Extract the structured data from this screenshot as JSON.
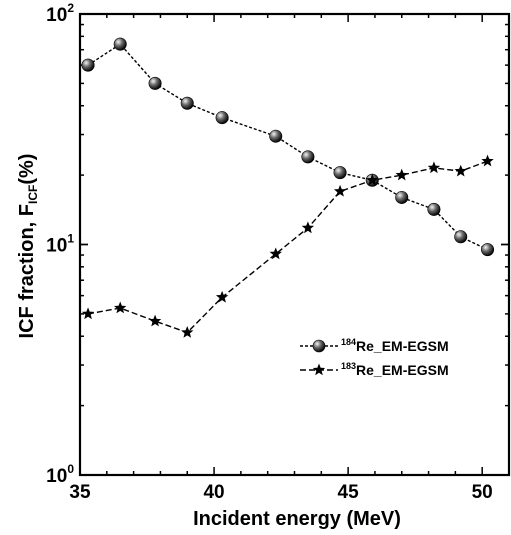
{
  "chart_data": {
    "type": "line",
    "xlabel": "Incident energy (MeV)",
    "ylabel_main": "ICF fraction, F",
    "ylabel_sub": "ICF",
    "ylabel_tail": "(%)",
    "xlim": [
      35,
      51
    ],
    "ylim": [
      1,
      100
    ],
    "yscale": "log",
    "x_ticks": [
      35,
      40,
      45,
      50
    ],
    "x_tick_labels": [
      "35",
      "40",
      "45",
      "50"
    ],
    "y_ticks": [
      {
        "value": 1,
        "base": "10",
        "exp": "0"
      },
      {
        "value": 10,
        "base": "10",
        "exp": "1"
      },
      {
        "value": 100,
        "base": "10",
        "exp": "2"
      }
    ],
    "legend_position": "center-right",
    "series": [
      {
        "name": "Re_EM-EGSM",
        "sup": "184",
        "marker": "sphere",
        "color": "#000000",
        "x": [
          35.3,
          36.5,
          37.8,
          39.0,
          40.3,
          42.3,
          43.5,
          44.7,
          45.9,
          47.0,
          48.2,
          49.2,
          50.2
        ],
        "y": [
          60,
          74,
          50,
          41,
          35.5,
          29.5,
          24,
          20.5,
          19,
          16,
          14.2,
          10.8,
          9.5
        ]
      },
      {
        "name": "Re_EM-EGSM",
        "sup": "183",
        "marker": "star",
        "color": "#000000",
        "x": [
          35.3,
          36.5,
          37.8,
          39.0,
          40.3,
          42.3,
          43.5,
          44.7,
          45.9,
          47.0,
          48.2,
          49.2,
          50.2
        ],
        "y": [
          5.0,
          5.3,
          4.65,
          4.15,
          5.9,
          9.1,
          11.8,
          17,
          19,
          20,
          21.5,
          20.8,
          23
        ]
      }
    ]
  }
}
